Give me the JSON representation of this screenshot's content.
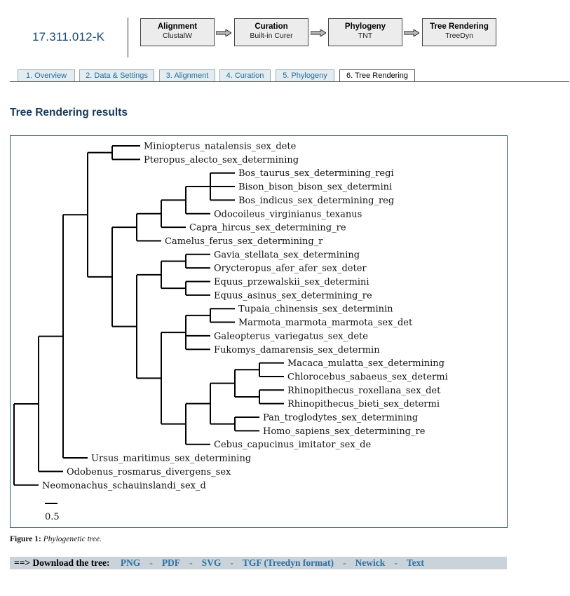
{
  "job_id": "17.311.012-K",
  "pipeline": [
    {
      "title": "Alignment",
      "subtitle": "ClustalW"
    },
    {
      "title": "Curation",
      "subtitle": "Built-in Curer"
    },
    {
      "title": "Phylogeny",
      "subtitle": "TNT"
    },
    {
      "title": "Tree Rendering",
      "subtitle": "TreeDyn"
    }
  ],
  "tabs": [
    "1. Overview",
    "2. Data & Settings",
    "3. Alignment",
    "4. Curation",
    "5. Phylogeny",
    "6. Tree Rendering"
  ],
  "active_tab": "6. Tree Rendering",
  "results_title": "Tree Rendering results",
  "tree": {
    "leaves": [
      "Miniopterus_natalensis_sex_dete",
      "Pteropus_alecto_sex_determining",
      "Bos_taurus_sex_determining_regi",
      "Bison_bison_bison_sex_determini",
      "Bos_indicus_sex_determining_reg",
      "Odocoileus_virginianus_texanus",
      "Capra_hircus_sex_determining_re",
      "Camelus_ferus_sex_determining_r",
      "Gavia_stellata_sex_determining",
      "Orycteropus_afer_afer_sex_deter",
      "Equus_przewalskii_sex_determini",
      "Equus_asinus_sex_determining_re",
      "Tupaia_chinensis_sex_determinin",
      "Marmota_marmota_marmota_sex_det",
      "Galeopterus_variegatus_sex_dete",
      "Fukomys_damarensis_sex_determin",
      "Macaca_mulatta_sex_determining",
      "Chlorocebus_sabaeus_sex_determi",
      "Rhinopithecus_roxellana_sex_det",
      "Rhinopithecus_bieti_sex_determi",
      "Pan_troglodytes_sex_determining",
      "Homo_sapiens_sex_determining_re",
      "Cebus_capucinus_imitator_sex_de",
      "Ursus_maritimus_sex_determining",
      "Odobenus_rosmarus_divergens_sex",
      "Neomonachus_schauinslandi_sex_d"
    ],
    "scale_label": "0.5"
  },
  "caption": {
    "label": "Figure 1:",
    "text": "Phylogenetic tree."
  },
  "download": {
    "lead": "==> Download the tree:",
    "links": [
      "PNG",
      "PDF",
      "SVG",
      "TGF (Treedyn format)",
      "Newick",
      "Text"
    ]
  }
}
